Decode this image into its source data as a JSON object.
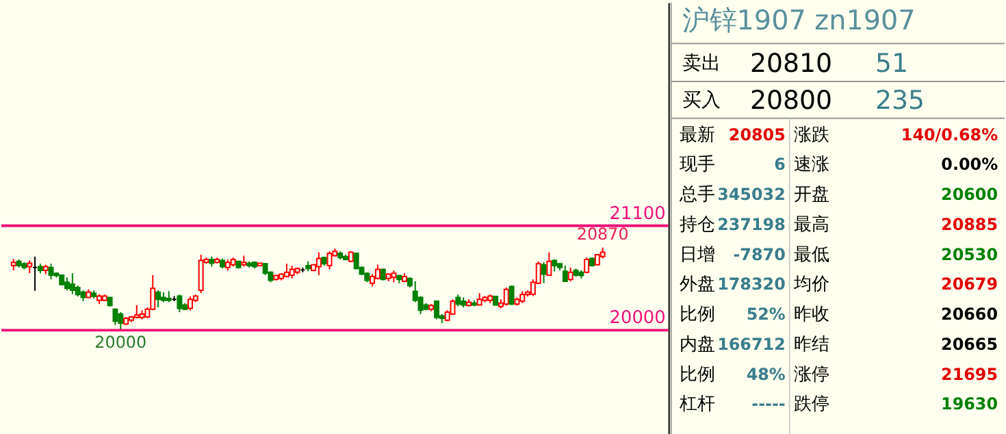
{
  "chart_data": [
    {
      "type": "candlestick",
      "relative": false,
      "tick_labels": false,
      "ylim": [
        18905,
        23450
      ],
      "categories": [
        null,
        null,
        null,
        null,
        null,
        null,
        null,
        null,
        null,
        null,
        null,
        null,
        null,
        null,
        null,
        null,
        null,
        null,
        null,
        null,
        null,
        null,
        null,
        null,
        null,
        null,
        null,
        null,
        null,
        null,
        null,
        null,
        null,
        null,
        null,
        null,
        null,
        null,
        null,
        null,
        null,
        null,
        null,
        null,
        null,
        null,
        null,
        null,
        null,
        null,
        null,
        null,
        null,
        null,
        null,
        null,
        null,
        null,
        null,
        null,
        null,
        null,
        null,
        null,
        null,
        null,
        null,
        null,
        null,
        null,
        null,
        null,
        null,
        null,
        null,
        null,
        null,
        null,
        null,
        null,
        null,
        null,
        null,
        null,
        null,
        null,
        null,
        null,
        null,
        null,
        null,
        null,
        null,
        null,
        null,
        null,
        null,
        null,
        null,
        null,
        null,
        null,
        null,
        null,
        null,
        null,
        null,
        null,
        null,
        null,
        null
      ],
      "ohlc": [
        [
          20680,
          20750,
          20630,
          20715
        ],
        [
          20725,
          20745,
          20660,
          20680
        ],
        [
          20700,
          20715,
          20640,
          20660
        ],
        [
          20670,
          20735,
          20600,
          20705
        ],
        [
          20660,
          20775,
          20415,
          20660
        ],
        [
          20670,
          20700,
          20600,
          20630
        ],
        [
          20630,
          20690,
          20590,
          20670
        ],
        [
          20660,
          20700,
          20535,
          20580
        ],
        [
          20600,
          20610,
          20555,
          20575
        ],
        [
          20580,
          20580,
          20470,
          20480
        ],
        [
          20505,
          20555,
          20420,
          20440
        ],
        [
          20485,
          20600,
          20380,
          20420
        ],
        [
          20450,
          20470,
          20355,
          20375
        ],
        [
          20400,
          20420,
          20305,
          20345
        ],
        [
          20345,
          20430,
          20345,
          20400
        ],
        [
          20390,
          20420,
          20335,
          20355
        ],
        [
          20315,
          20380,
          20275,
          20360
        ],
        [
          20315,
          20375,
          20305,
          20360
        ],
        [
          20345,
          20345,
          20250,
          20260
        ],
        [
          20220,
          20230,
          20055,
          20095
        ],
        [
          20170,
          20190,
          20000,
          20075
        ],
        [
          20065,
          20140,
          20055,
          20125
        ],
        [
          20105,
          20150,
          20085,
          20140
        ],
        [
          20135,
          20265,
          20125,
          20160
        ],
        [
          20135,
          20210,
          20115,
          20170
        ],
        [
          20140,
          20240,
          20125,
          20220
        ],
        [
          20220,
          20580,
          20210,
          20440
        ],
        [
          20400,
          20420,
          20240,
          20325
        ],
        [
          20345,
          20400,
          20295,
          20315
        ],
        [
          20335,
          20410,
          20295,
          20315
        ],
        [
          20325,
          20360,
          20305,
          20325
        ],
        [
          20360,
          20375,
          20190,
          20230
        ],
        [
          20265,
          20285,
          20210,
          20220
        ],
        [
          20230,
          20355,
          20210,
          20325
        ],
        [
          20315,
          20375,
          20295,
          20360
        ],
        [
          20420,
          20795,
          20390,
          20735
        ],
        [
          20715,
          20765,
          20700,
          20745
        ],
        [
          20745,
          20775,
          20670,
          20705
        ],
        [
          20715,
          20765,
          20705,
          20745
        ],
        [
          20735,
          20755,
          20650,
          20670
        ],
        [
          20660,
          20745,
          20630,
          20715
        ],
        [
          20690,
          20765,
          20670,
          20745
        ],
        [
          20725,
          20725,
          20650,
          20660
        ],
        [
          20690,
          20785,
          20670,
          20715
        ],
        [
          20705,
          20725,
          20660,
          20680
        ],
        [
          20715,
          20725,
          20650,
          20670
        ],
        [
          20680,
          20705,
          20680,
          20705
        ],
        [
          20700,
          20705,
          20580,
          20600
        ],
        [
          20610,
          20620,
          20505,
          20525
        ],
        [
          20535,
          20580,
          20525,
          20575
        ],
        [
          20545,
          20600,
          20525,
          20590
        ],
        [
          20565,
          20700,
          20555,
          20610
        ],
        [
          20580,
          20680,
          20545,
          20640
        ],
        [
          20610,
          20660,
          20590,
          20650
        ],
        [
          20635,
          20660,
          20610,
          20635
        ],
        [
          20680,
          20725,
          20620,
          20650
        ],
        [
          20630,
          20690,
          20620,
          20690
        ],
        [
          20670,
          20820,
          20580,
          20755
        ],
        [
          20765,
          20775,
          20680,
          20700
        ],
        [
          20680,
          20830,
          20640,
          20810
        ],
        [
          20785,
          20860,
          20775,
          20830
        ],
        [
          20810,
          20830,
          20745,
          20765
        ],
        [
          20775,
          20795,
          20735,
          20745
        ],
        [
          20725,
          20830,
          20715,
          20820
        ],
        [
          20810,
          20810,
          20640,
          20650
        ],
        [
          20660,
          20670,
          20580,
          20590
        ],
        [
          20600,
          20610,
          20505,
          20525
        ],
        [
          20495,
          20590,
          20460,
          20565
        ],
        [
          20545,
          20690,
          20535,
          20640
        ],
        [
          20640,
          20650,
          20525,
          20535
        ],
        [
          20545,
          20600,
          20515,
          20590
        ],
        [
          20555,
          20630,
          20505,
          20600
        ],
        [
          20575,
          20580,
          20495,
          20535
        ],
        [
          20515,
          20600,
          20505,
          20565
        ],
        [
          20545,
          20555,
          20450,
          20470
        ],
        [
          20410,
          20515,
          20295,
          20315
        ],
        [
          20345,
          20360,
          20170,
          20210
        ],
        [
          20265,
          20285,
          20210,
          20220
        ],
        [
          20220,
          20275,
          20200,
          20260
        ],
        [
          20305,
          20315,
          20115,
          20135
        ],
        [
          20150,
          20170,
          20075,
          20125
        ],
        [
          20105,
          20210,
          20095,
          20190
        ],
        [
          20170,
          20325,
          20160,
          20305
        ],
        [
          20345,
          20375,
          20250,
          20275
        ],
        [
          20305,
          20345,
          20240,
          20265
        ],
        [
          20260,
          20325,
          20250,
          20295
        ],
        [
          20285,
          20315,
          20250,
          20265
        ],
        [
          20265,
          20390,
          20260,
          20325
        ],
        [
          20315,
          20360,
          20295,
          20345
        ],
        [
          20315,
          20375,
          20285,
          20360
        ],
        [
          20355,
          20360,
          20260,
          20265
        ],
        [
          20250,
          20325,
          20230,
          20285
        ],
        [
          20275,
          20450,
          20260,
          20430
        ],
        [
          20460,
          20470,
          20265,
          20275
        ],
        [
          20275,
          20345,
          20260,
          20325
        ],
        [
          20305,
          20410,
          20285,
          20375
        ],
        [
          20375,
          20420,
          20355,
          20400
        ],
        [
          20380,
          20535,
          20360,
          20505
        ],
        [
          20495,
          20725,
          20485,
          20700
        ],
        [
          20690,
          20715,
          20495,
          20590
        ],
        [
          20580,
          20820,
          20575,
          20725
        ],
        [
          20735,
          20745,
          20620,
          20680
        ],
        [
          20700,
          20705,
          20630,
          20660
        ],
        [
          20620,
          20680,
          20515,
          20515
        ],
        [
          20535,
          20660,
          20515,
          20610
        ],
        [
          20630,
          20650,
          20565,
          20580
        ],
        [
          20610,
          20630,
          20545,
          20575
        ],
        [
          20610,
          20765,
          20600,
          20745
        ],
        [
          20755,
          20765,
          20670,
          20680
        ],
        [
          20690,
          20800,
          20680,
          20795
        ],
        [
          20775,
          20870,
          20755,
          20820
        ]
      ],
      "colors": [
        "#ff0000",
        "#008000",
        "#008000",
        "#ff0000",
        "#000000",
        "#008000",
        "#ff0000",
        "#008000",
        "#008000",
        "#008000",
        "#008000",
        "#008000",
        "#008000",
        "#008000",
        "#ff0000",
        "#008000",
        "#ff0000",
        "#ff0000",
        "#008000",
        "#008000",
        "#008000",
        "#ff0000",
        "#ff0000",
        "#ff0000",
        "#ff0000",
        "#ff0000",
        "#ff0000",
        "#008000",
        "#008000",
        "#008000",
        "#000000",
        "#008000",
        "#008000",
        "#ff0000",
        "#ff0000",
        "#ff0000",
        "#ff0000",
        "#008000",
        "#ff0000",
        "#008000",
        "#ff0000",
        "#ff0000",
        "#008000",
        "#ff0000",
        "#008000",
        "#008000",
        "#ff0000",
        "#008000",
        "#008000",
        "#ff0000",
        "#ff0000",
        "#ff0000",
        "#ff0000",
        "#ff0000",
        "#000000",
        "#008000",
        "#ff0000",
        "#ff0000",
        "#008000",
        "#ff0000",
        "#ff0000",
        "#008000",
        "#008000",
        "#ff0000",
        "#008000",
        "#008000",
        "#008000",
        "#ff0000",
        "#ff0000",
        "#008000",
        "#ff0000",
        "#ff0000",
        "#008000",
        "#ff0000",
        "#008000",
        "#008000",
        "#008000",
        "#008000",
        "#ff0000",
        "#008000",
        "#008000",
        "#ff0000",
        "#ff0000",
        "#008000",
        "#008000",
        "#ff0000",
        "#008000",
        "#ff0000",
        "#ff0000",
        "#ff0000",
        "#008000",
        "#ff0000",
        "#ff0000",
        "#008000",
        "#ff0000",
        "#ff0000",
        "#ff0000",
        "#ff0000",
        "#ff0000",
        "#008000",
        "#ff0000",
        "#008000",
        "#008000",
        "#008000",
        "#ff0000",
        "#008000",
        "#008000",
        "#ff0000",
        "#008000",
        "#ff0000",
        "#ff0000"
      ],
      "ref_lines": [
        {
          "axis": "y",
          "value": 21100,
          "label": "21100",
          "color": "#f0107a"
        },
        {
          "axis": "y",
          "value": 20000,
          "label": "20000",
          "color": "#f0107a"
        }
      ],
      "annotations": [
        {
          "text": "20870",
          "y": 20870
        },
        {
          "text": "20000",
          "y": 20000
        }
      ]
    },
    {
      "type": "other",
      "title": "沪锌1907  zn1907",
      "annotations": [
        "卖出",
        "20810",
        "51",
        "买入",
        "20800",
        "235",
        "最新",
        "20805",
        "涨跌",
        "140/0.68%",
        "现手",
        "6",
        "速涨",
        "0.00%",
        "总手",
        "345032",
        "开盘",
        "20600",
        "持仓",
        "237198",
        "最高",
        "20885",
        "日增",
        "-7870",
        "最低",
        "20530",
        "外盘",
        "178320",
        "均价",
        "20679",
        "比例",
        "52%",
        "昨收",
        "20660",
        "内盘",
        "166712",
        "昨结",
        "20665",
        "比例",
        "48%",
        "涨停",
        "21695",
        "杠杆",
        "-----",
        "跌停",
        "19630"
      ],
      "colors": [
        "#000000",
        "#000000",
        "#3a7d8c",
        "#000000",
        "#000000",
        "#3a7d8c",
        "#000000",
        "#e00000",
        "#000000",
        "#e00000",
        "#000000",
        "#3a7d8c",
        "#000000",
        "#000000",
        "#000000",
        "#3a7d8c",
        "#000000",
        "#008000",
        "#000000",
        "#3a7d8c",
        "#000000",
        "#e00000",
        "#000000",
        "#3a7d8c",
        "#000000",
        "#008000",
        "#000000",
        "#3a7d8c",
        "#000000",
        "#e00000",
        "#000000",
        "#3a7d8c",
        "#000000",
        "#000000",
        "#000000",
        "#3a7d8c",
        "#000000",
        "#000000",
        "#000000",
        "#3a7d8c",
        "#000000",
        "#e00000",
        "#000000",
        "#3a7d8c",
        "#000000",
        "#008000"
      ]
    }
  ]
}
